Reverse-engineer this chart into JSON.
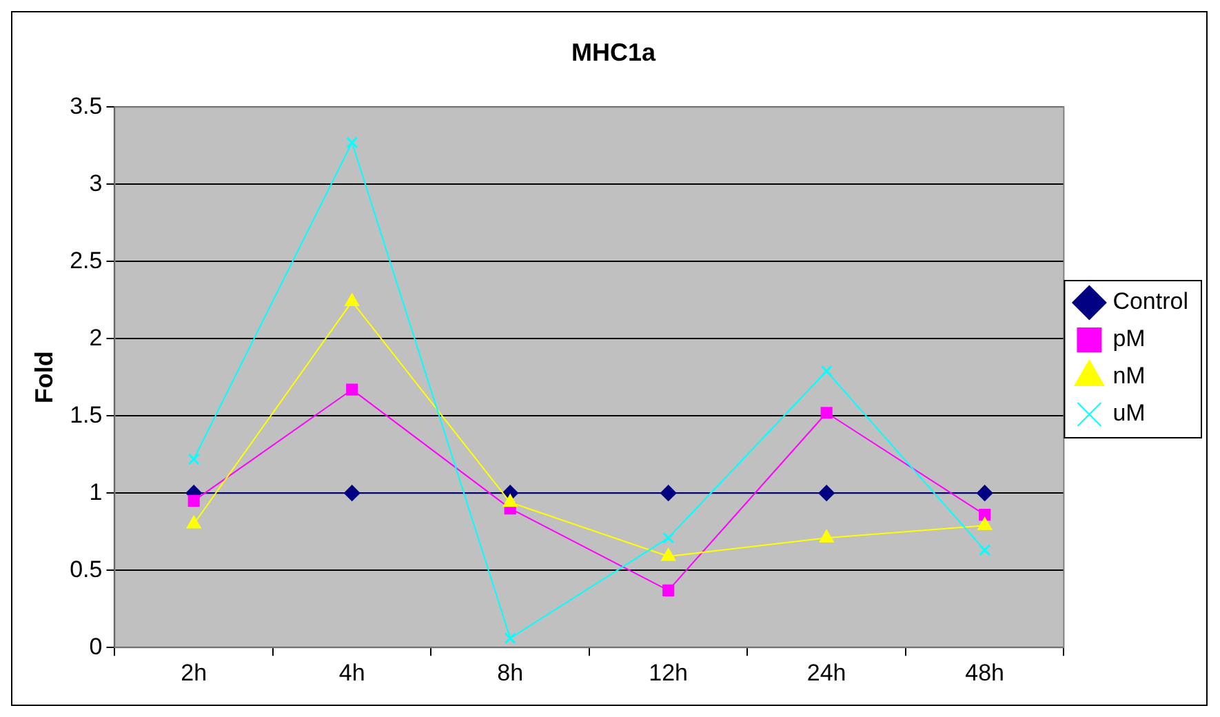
{
  "chart_data": {
    "type": "line",
    "title": "MHC1a",
    "ylabel": "Fold",
    "categories": [
      "2h",
      "4h",
      "8h",
      "12h",
      "24h",
      "48h"
    ],
    "series": [
      {
        "name": "Control",
        "color": "#000080",
        "marker": "diamond",
        "values": [
          1,
          1,
          1,
          1,
          1,
          1
        ]
      },
      {
        "name": "pM",
        "color": "#ff00ff",
        "marker": "square",
        "values": [
          0.95,
          1.67,
          0.9,
          0.37,
          1.52,
          0.86
        ]
      },
      {
        "name": "nM",
        "color": "#ffff00",
        "marker": "triangle",
        "values": [
          0.8,
          2.24,
          0.94,
          0.59,
          0.71,
          0.79
        ]
      },
      {
        "name": "uM",
        "color": "#00ffff",
        "marker": "cross",
        "values": [
          1.22,
          3.27,
          0.06,
          0.71,
          1.79,
          0.63
        ]
      }
    ],
    "ylim": [
      0,
      3.5
    ],
    "yticks": [
      0,
      0.5,
      1,
      1.5,
      2,
      2.5,
      3,
      3.5
    ],
    "grid": "y",
    "legend": "right"
  }
}
